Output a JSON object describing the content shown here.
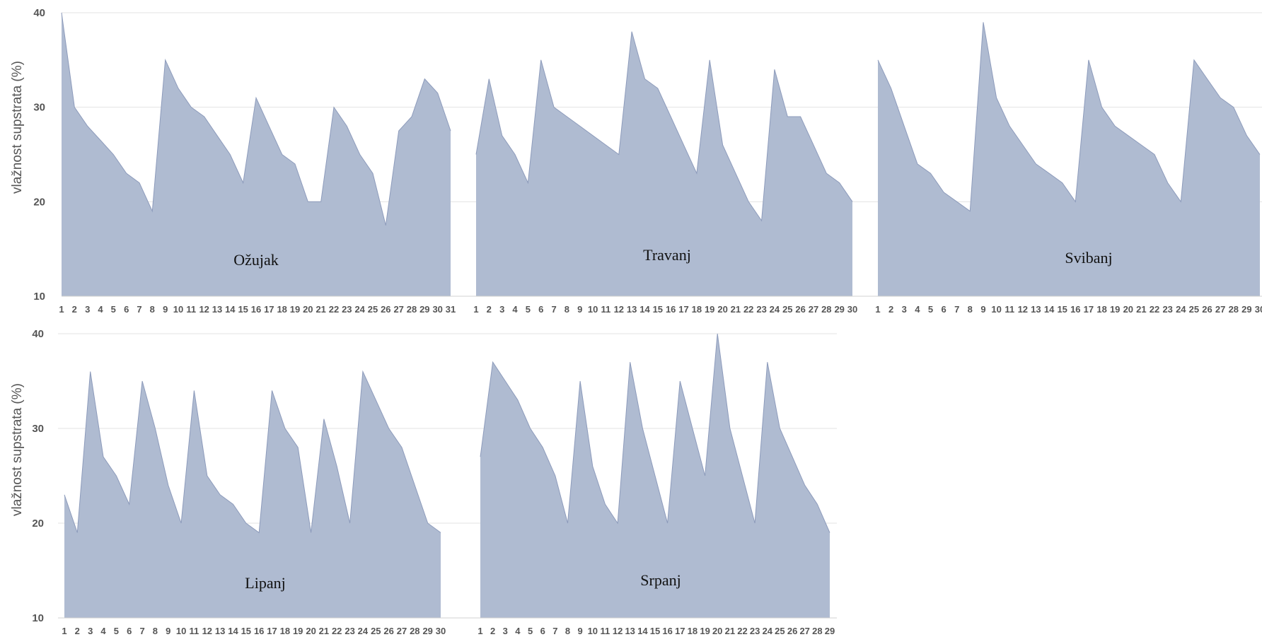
{
  "chart_data": [
    {
      "type": "area",
      "ylabel": "vlažnost supstrata (%)",
      "ylim": [
        10,
        40
      ],
      "yticks": [
        10,
        20,
        30,
        40
      ],
      "grid": true,
      "color": "#afbbd1",
      "line_color": "#8d9bbb",
      "grid_color": "#e3e3e3",
      "series": [
        {
          "name": "Ožujak",
          "x": [
            "1",
            "2",
            "3",
            "4",
            "5",
            "6",
            "7",
            "8",
            "9",
            "10",
            "11",
            "12",
            "13",
            "14",
            "15",
            "16",
            "17",
            "18",
            "19",
            "20",
            "21",
            "22",
            "23",
            "24",
            "25",
            "26",
            "27",
            "28",
            "29",
            "30",
            "31"
          ],
          "values": [
            40,
            30,
            28,
            26.5,
            25,
            23,
            22,
            19,
            35,
            32,
            30,
            29,
            27,
            25,
            22,
            31,
            28,
            25,
            24,
            20,
            20,
            30,
            28,
            25,
            23,
            17.5,
            27.5,
            29,
            33,
            31.5,
            27.5
          ]
        },
        {
          "name": "Travanj",
          "x": [
            "1",
            "2",
            "3",
            "4",
            "5",
            "6",
            "7",
            "8",
            "9",
            "10",
            "11",
            "12",
            "13",
            "14",
            "15",
            "16",
            "17",
            "18",
            "19",
            "20",
            "21",
            "22",
            "23",
            "24",
            "25",
            "26",
            "27",
            "28",
            "29",
            "30"
          ],
          "values": [
            25,
            33,
            27,
            25,
            22,
            35,
            30,
            29,
            28,
            27,
            26,
            25,
            38,
            33,
            32,
            29,
            26,
            23,
            35,
            26,
            23,
            20,
            18,
            34,
            29,
            29,
            26,
            23,
            22,
            20
          ]
        },
        {
          "name": "Svibanj",
          "x": [
            "1",
            "2",
            "3",
            "4",
            "5",
            "6",
            "7",
            "8",
            "9",
            "10",
            "11",
            "12",
            "13",
            "14",
            "15",
            "16",
            "17",
            "18",
            "19",
            "20",
            "21",
            "22",
            "23",
            "24",
            "25",
            "26",
            "27",
            "28",
            "29",
            "30"
          ],
          "values": [
            35,
            32,
            28,
            24,
            23,
            21,
            20,
            19,
            39,
            31,
            28,
            26,
            24,
            23,
            22,
            20,
            35,
            30,
            28,
            27,
            26,
            25,
            22,
            20,
            35,
            33,
            31,
            30,
            27,
            25
          ]
        }
      ]
    },
    {
      "type": "area",
      "ylabel": "vlažnost supstrata (%)",
      "ylim": [
        10,
        40
      ],
      "yticks": [
        10,
        20,
        30,
        40
      ],
      "grid": true,
      "color": "#afbbd1",
      "line_color": "#8d9bbb",
      "grid_color": "#e3e3e3",
      "series": [
        {
          "name": "Lipanj",
          "x": [
            "1",
            "2",
            "3",
            "4",
            "5",
            "6",
            "7",
            "8",
            "9",
            "10",
            "11",
            "12",
            "13",
            "14",
            "15",
            "16",
            "17",
            "18",
            "19",
            "20",
            "21",
            "22",
            "23",
            "24",
            "25",
            "26",
            "27",
            "28",
            "29",
            "30"
          ],
          "values": [
            23,
            19,
            36,
            27,
            25,
            22,
            35,
            30,
            24,
            20,
            34,
            25,
            23,
            22,
            20,
            19,
            34,
            30,
            28,
            19,
            31,
            26,
            20,
            36,
            33,
            30,
            28,
            24,
            20,
            19
          ]
        },
        {
          "name": "Srpanj",
          "x": [
            "1",
            "2",
            "3",
            "4",
            "5",
            "6",
            "7",
            "8",
            "9",
            "10",
            "11",
            "12",
            "13",
            "14",
            "15",
            "16",
            "17",
            "18",
            "19",
            "20",
            "21",
            "22",
            "23",
            "24",
            "25",
            "26",
            "27",
            "28",
            "29"
          ],
          "values": [
            27,
            37,
            35,
            33,
            30,
            28,
            25,
            20,
            35,
            26,
            22,
            20,
            37,
            30,
            25,
            20,
            35,
            30,
            25,
            40,
            30,
            25,
            20,
            37,
            30,
            27,
            24,
            22,
            19
          ]
        }
      ]
    }
  ]
}
